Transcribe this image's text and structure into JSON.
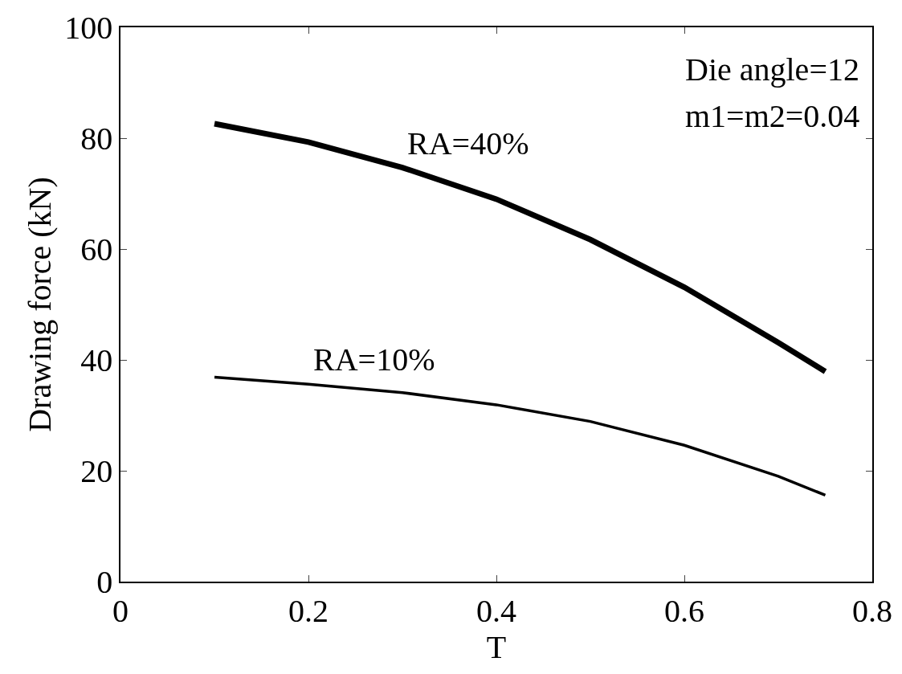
{
  "chart_data": {
    "type": "line",
    "xlabel": "T",
    "ylabel": "Drawing force (kN)",
    "x": [
      0.1,
      0.2,
      0.3,
      0.4,
      0.5,
      0.6,
      0.7,
      0.75
    ],
    "series": [
      {
        "name": "RA=40%",
        "color": "#000000",
        "values": [
          82.6,
          79.3,
          74.7,
          69,
          61.7,
          53.1,
          43.1,
          37.9
        ]
      },
      {
        "name": "RA=10%",
        "color": "#000000",
        "values": [
          36.9,
          35.6,
          34.1,
          31.9,
          28.9,
          24.6,
          19,
          15.6
        ]
      }
    ],
    "annotations": [
      "Die angle=12",
      "m1=m2=0.04"
    ],
    "xlim": [
      0,
      0.8
    ],
    "xticks": [
      0,
      0.2,
      0.4,
      0.6,
      0.8
    ],
    "ylim": [
      0,
      100
    ],
    "yticks": [
      0,
      20,
      40,
      60,
      80,
      100
    ],
    "grid": false,
    "marker": "none",
    "line_style": "solid"
  }
}
